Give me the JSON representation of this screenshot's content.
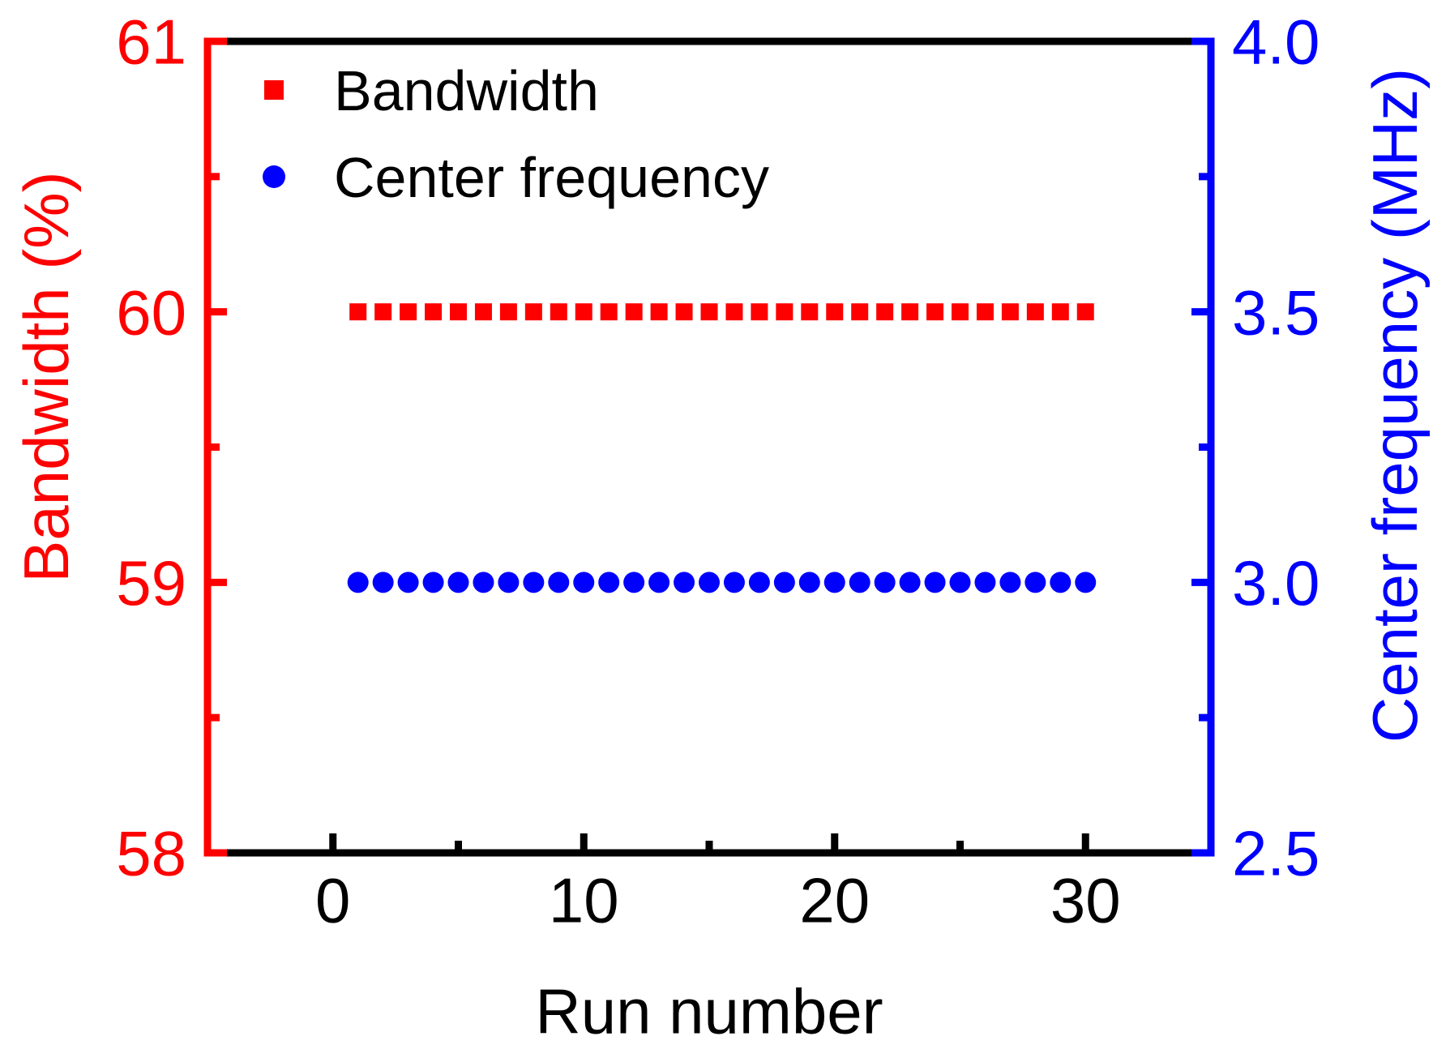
{
  "chart_data": {
    "type": "scatter",
    "title": "",
    "background": "#ffffff",
    "grid": false,
    "x": [
      1,
      2,
      3,
      4,
      5,
      6,
      7,
      8,
      9,
      10,
      11,
      12,
      13,
      14,
      15,
      16,
      17,
      18,
      19,
      20,
      21,
      22,
      23,
      24,
      25,
      26,
      27,
      28,
      29,
      30
    ],
    "series": [
      {
        "name": "Bandwidth",
        "axis": "left",
        "marker": "square",
        "color": "#ff0000",
        "values": [
          60,
          60,
          60,
          60,
          60,
          60,
          60,
          60,
          60,
          60,
          60,
          60,
          60,
          60,
          60,
          60,
          60,
          60,
          60,
          60,
          60,
          60,
          60,
          60,
          60,
          60,
          60,
          60,
          60,
          60
        ]
      },
      {
        "name": "Center frequency",
        "axis": "right",
        "marker": "circle",
        "color": "#0000ff",
        "values": [
          3.0,
          3.0,
          3.0,
          3.0,
          3.0,
          3.0,
          3.0,
          3.0,
          3.0,
          3.0,
          3.0,
          3.0,
          3.0,
          3.0,
          3.0,
          3.0,
          3.0,
          3.0,
          3.0,
          3.0,
          3.0,
          3.0,
          3.0,
          3.0,
          3.0,
          3.0,
          3.0,
          3.0,
          3.0,
          3.0
        ]
      }
    ],
    "x_axis": {
      "label": "Run number",
      "color": "#000000",
      "lim": [
        -5,
        35
      ],
      "major_ticks": [
        0,
        10,
        20,
        30
      ],
      "major_tick_labels": [
        "0",
        "10",
        "20",
        "30"
      ],
      "minor_ticks": [
        5,
        15,
        25
      ]
    },
    "left_axis": {
      "label": "Bandwidth (%)",
      "color": "#ff0000",
      "lim": [
        58,
        61
      ],
      "major_ticks": [
        58,
        59,
        60,
        61
      ],
      "major_tick_labels": [
        "58",
        "59",
        "60",
        "61"
      ],
      "minor_ticks": [
        58.5,
        59.5,
        60.5
      ]
    },
    "right_axis": {
      "label": "Center frequency (MHz)",
      "color": "#0000ff",
      "lim": [
        2.5,
        4.0
      ],
      "major_ticks": [
        2.5,
        3.0,
        3.5,
        4.0
      ],
      "major_tick_labels": [
        "2.5",
        "3.0",
        "3.5",
        "4.0"
      ],
      "minor_ticks": [
        2.75,
        3.25,
        3.75
      ]
    },
    "legend": {
      "position": "top-left-inside",
      "entries": [
        {
          "label": "Bandwidth",
          "marker": "square",
          "color": "#ff0000"
        },
        {
          "label": "Center frequency",
          "marker": "circle",
          "color": "#0000ff"
        }
      ]
    }
  }
}
